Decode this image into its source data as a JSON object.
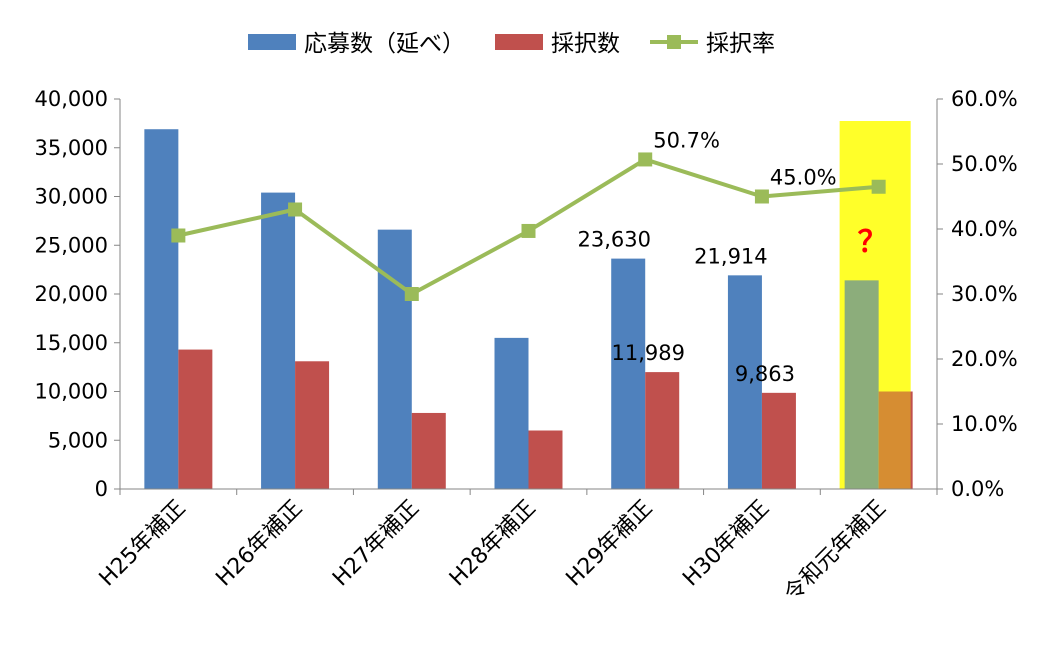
{
  "chart_data": {
    "type": "bar",
    "categories": [
      "H25年補正",
      "H26年補正",
      "H27年補正",
      "H28年補正",
      "H29年補正",
      "H30年補正",
      "令和元年補正"
    ],
    "series": [
      {
        "name": "応募数（延べ）",
        "kind": "bar",
        "axis": "left",
        "color": "#4F81BD",
        "values": [
          36900,
          30400,
          26600,
          15500,
          23630,
          21914,
          21400
        ]
      },
      {
        "name": "採択数",
        "kind": "bar",
        "axis": "left",
        "color": "#C0504D",
        "values": [
          14300,
          13100,
          7800,
          6000,
          11989,
          9863,
          10000
        ]
      },
      {
        "name": "採択率",
        "kind": "line",
        "axis": "right",
        "color": "#9BBB59",
        "values": [
          0.39,
          0.43,
          0.3,
          0.397,
          0.507,
          0.45,
          0.465
        ]
      }
    ],
    "y_left": {
      "range": [
        0,
        40000
      ],
      "ticks": [
        "0",
        "5,000",
        "10,000",
        "15,000",
        "20,000",
        "25,000",
        "30,000",
        "35,000",
        "40,000"
      ]
    },
    "y_right": {
      "range": [
        0,
        0.6
      ],
      "ticks": [
        "0.0%",
        "10.0%",
        "20.0%",
        "30.0%",
        "40.0%",
        "50.0%",
        "60.0%"
      ]
    },
    "data_labels": [
      {
        "series": "応募数（延べ）",
        "category": "H29年補正",
        "text": "23,630"
      },
      {
        "series": "応募数（延べ）",
        "category": "H30年補正",
        "text": "21,914"
      },
      {
        "series": "採択数",
        "category": "H29年補正",
        "text": "11,989"
      },
      {
        "series": "採択数",
        "category": "H30年補正",
        "text": "9,863"
      },
      {
        "series": "採択率",
        "category": "H29年補正",
        "text": "50.7%"
      },
      {
        "series": "採択率",
        "category": "H30年補正",
        "text": "45.0%"
      }
    ],
    "highlight": {
      "category": "令和元年補正",
      "color": "#FFFF00",
      "note": "？",
      "note_color": "#FF0000"
    },
    "legend_position": "top-center",
    "grid": false
  }
}
